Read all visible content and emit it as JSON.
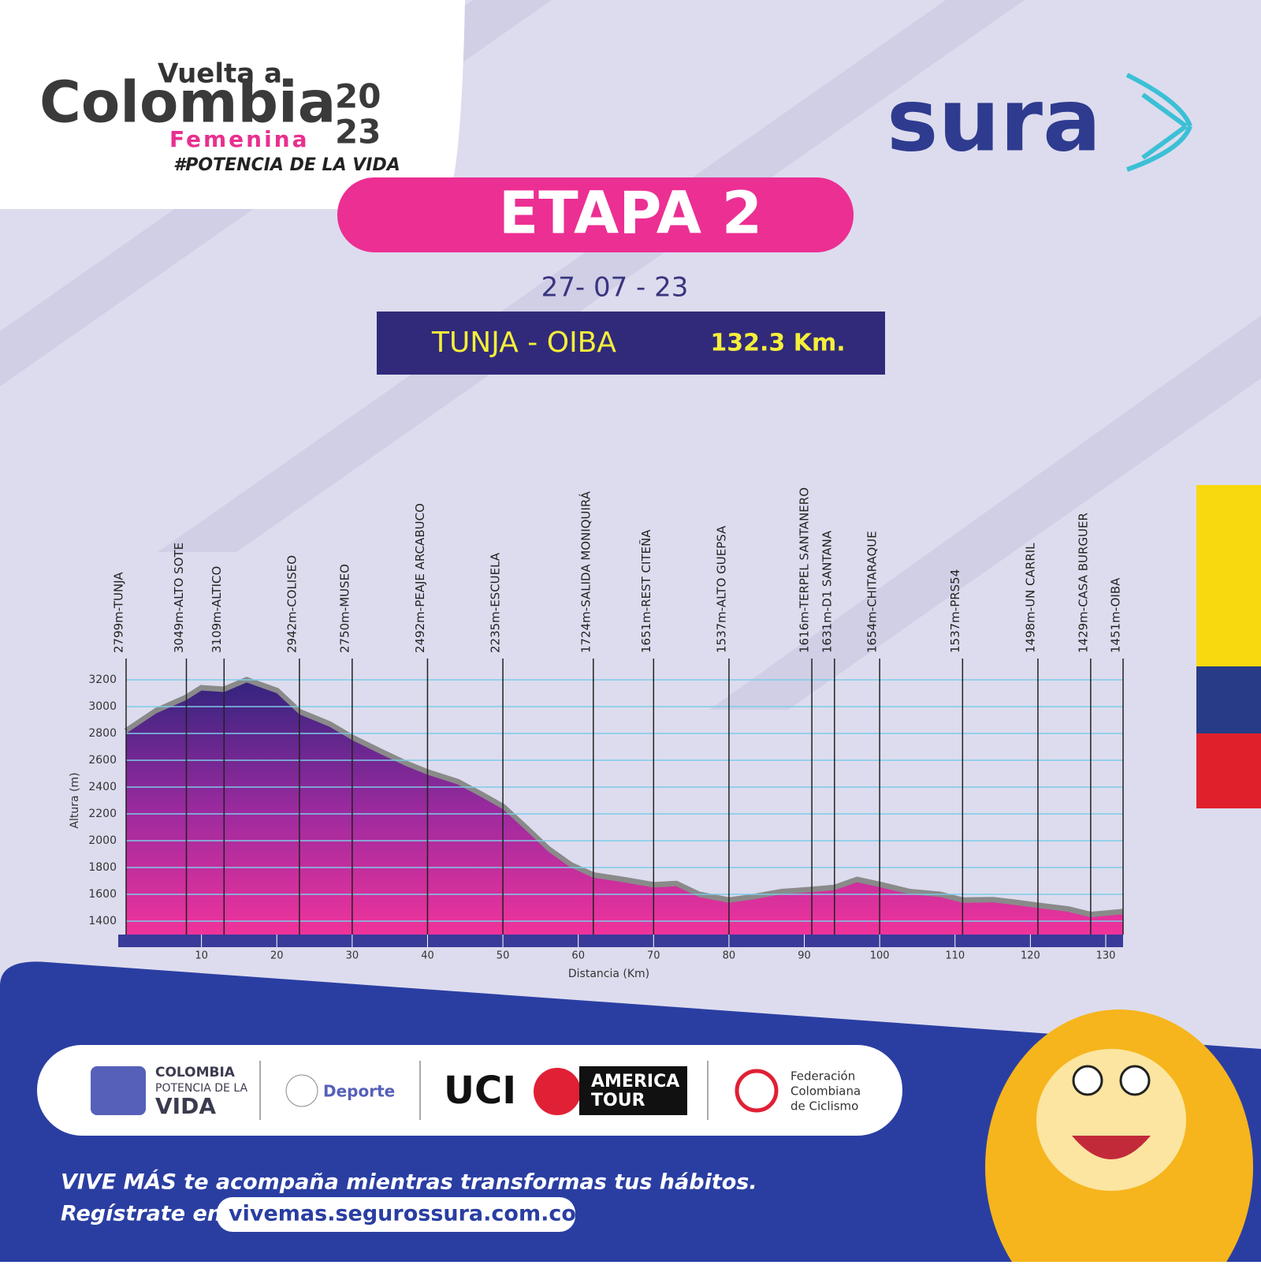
{
  "logo": {
    "line1": "Vuelta a",
    "line2": "Colombia",
    "year_top": "20",
    "year_bottom": "23",
    "line3": "Femenina",
    "hashtag": "#POTENCIA DE LA VIDA"
  },
  "sponsor": "sura",
  "stage": {
    "title": "ETAPA 2",
    "date": "27- 07 - 23",
    "route": "TUNJA - OIBA",
    "distance": "132.3 Km."
  },
  "chart_data": {
    "type": "area",
    "ylabel": "Altura (m)",
    "xlabel": "Distancia (Km)",
    "x": [
      0,
      4,
      8,
      10,
      13,
      16,
      20,
      23,
      27,
      30,
      34,
      37,
      40,
      44,
      47,
      50,
      53,
      56,
      59,
      62,
      66,
      70,
      73,
      76,
      80,
      83,
      87,
      91,
      94,
      97,
      100,
      104,
      108,
      111,
      115,
      118,
      121,
      125,
      128,
      132.3
    ],
    "values": [
      2799,
      2950,
      3049,
      3120,
      3109,
      3180,
      3100,
      2942,
      2850,
      2750,
      2640,
      2560,
      2492,
      2420,
      2330,
      2235,
      2080,
      1920,
      1800,
      1724,
      1690,
      1651,
      1660,
      1580,
      1537,
      1560,
      1600,
      1616,
      1631,
      1690,
      1654,
      1600,
      1580,
      1537,
      1540,
      1520,
      1498,
      1470,
      1429,
      1451
    ],
    "xlim": [
      0,
      132.3
    ],
    "ylim": [
      1300,
      3300
    ],
    "yticks": [
      1400,
      1600,
      1800,
      2000,
      2200,
      2400,
      2600,
      2800,
      3000,
      3200
    ],
    "xticks": [
      10,
      20,
      30,
      40,
      50,
      60,
      70,
      80,
      90,
      100,
      110,
      120,
      130
    ],
    "grid": true,
    "annotations": [
      {
        "x": 0,
        "label": "2799m-TUNJA"
      },
      {
        "x": 8,
        "label": "3049m-ALTO SOTE"
      },
      {
        "x": 13,
        "label": "3109m-ALTICO"
      },
      {
        "x": 23,
        "label": "2942m-COLISEO"
      },
      {
        "x": 30,
        "label": "2750m-MUSEO"
      },
      {
        "x": 40,
        "label": "2492m-PEAJE ARCABUCO"
      },
      {
        "x": 50,
        "label": "2235m-ESCUELA"
      },
      {
        "x": 62,
        "label": "1724m-SALIDA MONIQUIRÁ"
      },
      {
        "x": 70,
        "label": "1651m-REST CITEÑA"
      },
      {
        "x": 80,
        "label": "1537m-ALTO GUEPSA"
      },
      {
        "x": 91,
        "label": "1616m-TERPEL SANTANERO"
      },
      {
        "x": 94,
        "label": "1631m-D1 SANTANA"
      },
      {
        "x": 100,
        "label": "1654m-CHITARAQUE"
      },
      {
        "x": 111,
        "label": "1537m-PRS54"
      },
      {
        "x": 121,
        "label": "1498m-UN CARRIL"
      },
      {
        "x": 128,
        "label": "1429m-CASA BURGUER"
      },
      {
        "x": 132.3,
        "label": "1451m-OIBA"
      }
    ]
  },
  "partners": {
    "colombia": "COLOMBIA",
    "potencia": "POTENCIA DE LA",
    "vida": "VIDA",
    "deporte": "Deporte",
    "uci": "UCI",
    "america": "AMERICA",
    "tour": "TOUR",
    "fed1": "Federación",
    "fed2": "Colombiana",
    "fed3": "de Ciclismo"
  },
  "footer": {
    "line1": "VIVE MÁS te acompaña mientras transformas tus hábitos.",
    "line2_prefix": "Regístrate en",
    "url": "vivemas.segurossura.com.co"
  }
}
